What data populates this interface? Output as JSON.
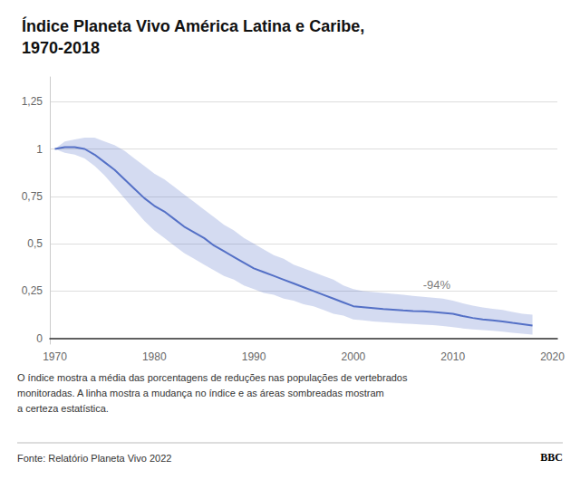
{
  "chart_data": {
    "type": "line",
    "title": "Índice Planeta Vivo América Latina e Caribe,\n1970-2018",
    "caption": "O índice mostra a média das porcentagens de reduções nas populações de vertebrados\nmonitoradas. A linha mostra a mudança no índice e as áreas sombreadas mostram\na certeza estatística.",
    "source": "Fonte: Relatório Planeta Vivo 2022",
    "credit": "BBC",
    "annotations": [
      {
        "text": "-94%",
        "x": 2007,
        "y": 0.285
      }
    ],
    "x": [
      1970,
      1971,
      1972,
      1973,
      1974,
      1975,
      1976,
      1977,
      1978,
      1979,
      1980,
      1981,
      1982,
      1983,
      1984,
      1985,
      1986,
      1987,
      1988,
      1989,
      1990,
      1991,
      1992,
      1993,
      1994,
      1995,
      1996,
      1997,
      1998,
      1999,
      2000,
      2001,
      2002,
      2003,
      2004,
      2005,
      2006,
      2007,
      2008,
      2009,
      2010,
      2011,
      2012,
      2013,
      2014,
      2015,
      2016,
      2017,
      2018
    ],
    "series": [
      {
        "values": [
          1.0,
          1.01,
          1.01,
          1.0,
          0.97,
          0.93,
          0.89,
          0.84,
          0.79,
          0.74,
          0.7,
          0.67,
          0.63,
          0.59,
          0.56,
          0.53,
          0.49,
          0.46,
          0.43,
          0.4,
          0.37,
          0.35,
          0.33,
          0.31,
          0.29,
          0.27,
          0.25,
          0.23,
          0.21,
          0.19,
          0.17,
          0.165,
          0.16,
          0.155,
          0.152,
          0.148,
          0.145,
          0.143,
          0.14,
          0.135,
          0.13,
          0.118,
          0.108,
          0.1,
          0.095,
          0.09,
          0.082,
          0.075,
          0.068
        ],
        "upper": [
          1.0,
          1.04,
          1.05,
          1.06,
          1.06,
          1.04,
          1.02,
          0.99,
          0.95,
          0.91,
          0.87,
          0.84,
          0.8,
          0.76,
          0.72,
          0.68,
          0.64,
          0.6,
          0.57,
          0.53,
          0.5,
          0.47,
          0.44,
          0.42,
          0.39,
          0.37,
          0.35,
          0.33,
          0.31,
          0.28,
          0.26,
          0.25,
          0.245,
          0.24,
          0.235,
          0.23,
          0.225,
          0.22,
          0.215,
          0.21,
          0.2,
          0.185,
          0.173,
          0.163,
          0.156,
          0.15,
          0.14,
          0.13,
          0.125
        ],
        "lower": [
          1.0,
          0.98,
          0.97,
          0.95,
          0.91,
          0.86,
          0.8,
          0.74,
          0.68,
          0.62,
          0.57,
          0.53,
          0.49,
          0.45,
          0.42,
          0.39,
          0.36,
          0.33,
          0.31,
          0.28,
          0.26,
          0.24,
          0.23,
          0.21,
          0.2,
          0.18,
          0.17,
          0.15,
          0.13,
          0.12,
          0.1,
          0.095,
          0.09,
          0.086,
          0.082,
          0.079,
          0.076,
          0.073,
          0.07,
          0.065,
          0.06,
          0.053,
          0.048,
          0.044,
          0.04,
          0.036,
          0.03,
          0.025,
          0.02
        ]
      }
    ],
    "xlim": [
      1969.5,
      2020.5
    ],
    "xticks": [
      1970,
      1980,
      1990,
      2000,
      2010,
      2020
    ],
    "ylim": [
      -0.03,
      1.38
    ],
    "yticks": [
      0,
      {
        "value": 0.25,
        "label": "0,25"
      },
      {
        "value": 0.5,
        "label": "0,5"
      },
      {
        "value": 0.75,
        "label": "0,75"
      },
      1,
      {
        "value": 1.25,
        "label": "1,25"
      }
    ],
    "grid": true
  }
}
